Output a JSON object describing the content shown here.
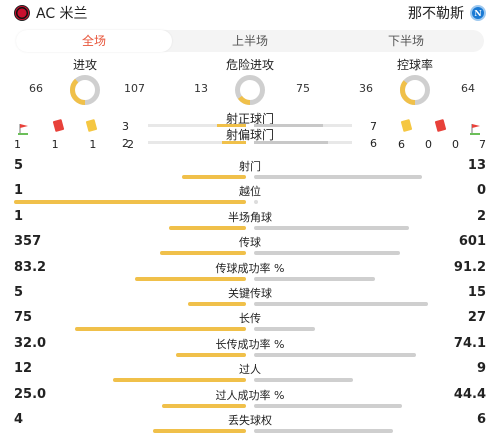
{
  "header": {
    "home_team": "AC 米兰",
    "away_team": "那不勒斯",
    "away_logo_letter": "N"
  },
  "tabs": [
    {
      "label": "全场",
      "active": true
    },
    {
      "label": "上半场",
      "active": false
    },
    {
      "label": "下半场",
      "active": false
    }
  ],
  "donuts": [
    {
      "title": "进攻",
      "home": "66",
      "away": "107",
      "home_val": 66,
      "away_val": 107
    },
    {
      "title": "危险进攻",
      "home": "13",
      "away": "75",
      "home_val": 13,
      "away_val": 75
    },
    {
      "title": "控球率",
      "home": "36",
      "away": "64",
      "home_val": 36,
      "away_val": 64
    }
  ],
  "cards": {
    "home": [
      "1",
      "1",
      "1",
      "2"
    ],
    "away": [
      "6",
      "0",
      "0",
      "7"
    ]
  },
  "shots": [
    {
      "label": "射正球门",
      "home": "3",
      "away": "7",
      "home_val": 3,
      "away_val": 7
    },
    {
      "label": "射偏球门",
      "home": "2",
      "away": "6",
      "home_val": 2,
      "away_val": 6
    }
  ],
  "stats": [
    {
      "label": "射门",
      "home": "5",
      "away": "13",
      "home_val": 5,
      "away_val": 13
    },
    {
      "label": "越位",
      "home": "1",
      "away": "0",
      "home_val": 1,
      "away_val": 0
    },
    {
      "label": "半场角球",
      "home": "1",
      "away": "2",
      "home_val": 1,
      "away_val": 2
    },
    {
      "label": "传球",
      "home": "357",
      "away": "601",
      "home_val": 357,
      "away_val": 601
    },
    {
      "label": "传球成功率 %",
      "home": "83.2",
      "away": "91.2",
      "home_val": 83.2,
      "away_val": 91.2
    },
    {
      "label": "关键传球",
      "home": "5",
      "away": "15",
      "home_val": 5,
      "away_val": 15
    },
    {
      "label": "长传",
      "home": "75",
      "away": "27",
      "home_val": 75,
      "away_val": 27
    },
    {
      "label": "长传成功率 %",
      "home": "32.0",
      "away": "74.1",
      "home_val": 32.0,
      "away_val": 74.1
    },
    {
      "label": "过人",
      "home": "12",
      "away": "9",
      "home_val": 12,
      "away_val": 9
    },
    {
      "label": "过人成功率 %",
      "home": "25.0",
      "away": "44.4",
      "home_val": 25.0,
      "away_val": 44.4
    },
    {
      "label": "丢失球权",
      "home": "4",
      "away": "6",
      "home_val": 4,
      "away_val": 6
    }
  ],
  "colors": {
    "home": "#f0c04a",
    "away": "#cfcfcf",
    "accent": "#e8553a"
  }
}
